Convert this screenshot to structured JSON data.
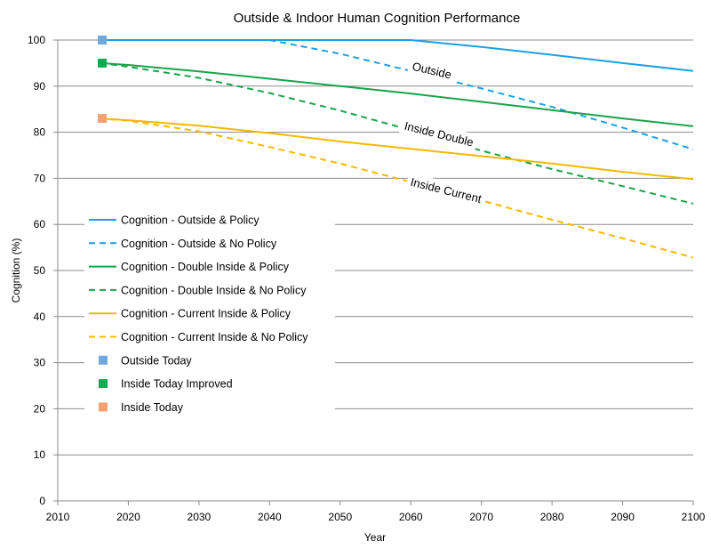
{
  "chart_data": {
    "type": "line",
    "title": "Outside & Indoor Human Cognition Performance",
    "xlabel": "Year",
    "ylabel": "Cognition (%)",
    "xlim": [
      2010,
      2100
    ],
    "ylim": [
      0,
      100
    ],
    "xticks": [
      2010,
      2020,
      2030,
      2040,
      2050,
      2060,
      2070,
      2080,
      2090,
      2100
    ],
    "yticks": [
      0,
      10,
      20,
      30,
      40,
      50,
      60,
      70,
      80,
      90,
      100
    ],
    "grid": "horizontal",
    "legend_position": "left",
    "series": [
      {
        "name": "Cognition - Outside & Policy",
        "style": "solid",
        "color": "#1ba1e2",
        "x": [
          2016,
          2060,
          2070,
          2080,
          2090,
          2100
        ],
        "y": [
          100,
          100,
          98.5,
          96.8,
          95,
          93.3
        ]
      },
      {
        "name": "Cognition - Outside & No Policy",
        "style": "dashed",
        "color": "#1ba1e2",
        "x": [
          2040,
          2050,
          2060,
          2070,
          2080,
          2090,
          2100
        ],
        "y": [
          100,
          97,
          93.3,
          89.5,
          85.5,
          81,
          76.3
        ]
      },
      {
        "name": "Cognition - Double Inside & Policy",
        "style": "solid",
        "color": "#1aa34a",
        "x": [
          2016,
          2020,
          2030,
          2040,
          2050,
          2060,
          2070,
          2080,
          2090,
          2100
        ],
        "y": [
          95,
          94.6,
          93.2,
          91.6,
          90,
          88.4,
          86.6,
          84.8,
          83,
          81.3
        ]
      },
      {
        "name": "Cognition - Double Inside & No Policy",
        "style": "dashed",
        "color": "#1aa34a",
        "x": [
          2016,
          2020,
          2030,
          2040,
          2050,
          2058,
          2070,
          2080,
          2090,
          2100
        ],
        "y": [
          95,
          94.2,
          91.8,
          88.5,
          84.7,
          81.3,
          76,
          72,
          68.3,
          64.5
        ]
      },
      {
        "name": "Cognition - Current Inside & Policy",
        "style": "solid",
        "color": "#f5b800",
        "x": [
          2016,
          2020,
          2030,
          2040,
          2050,
          2060,
          2070,
          2080,
          2090,
          2100
        ],
        "y": [
          83,
          82.6,
          81.4,
          79.8,
          78,
          76.4,
          74.8,
          73.2,
          71.4,
          69.8
        ]
      },
      {
        "name": "Cognition - Current Inside & No Policy",
        "style": "dashed",
        "color": "#f5b800",
        "x": [
          2016,
          2020,
          2030,
          2040,
          2050,
          2060,
          2070,
          2080,
          2090,
          2100
        ],
        "y": [
          83,
          82.5,
          80.2,
          76.8,
          73.2,
          69.2,
          65.2,
          61,
          57,
          52.8
        ]
      },
      {
        "name": "Outside Today",
        "style": "marker",
        "color": "#6fa8dc",
        "x": [
          2016.3
        ],
        "y": [
          100
        ]
      },
      {
        "name": "Inside Today Improved",
        "style": "marker",
        "color": "#00b050",
        "x": [
          2016.3
        ],
        "y": [
          95
        ]
      },
      {
        "name": "Inside Today",
        "style": "marker",
        "color": "#f4a072",
        "x": [
          2016.3
        ],
        "y": [
          83
        ]
      }
    ],
    "annotations": [
      {
        "text": "Outside",
        "x": 2063,
        "y": 93.5,
        "angle": 13
      },
      {
        "text": "Inside Double",
        "x": 2064,
        "y": 79.7,
        "angle": 14
      },
      {
        "text": "Inside Current",
        "x": 2065,
        "y": 67.5,
        "angle": 14
      }
    ]
  }
}
